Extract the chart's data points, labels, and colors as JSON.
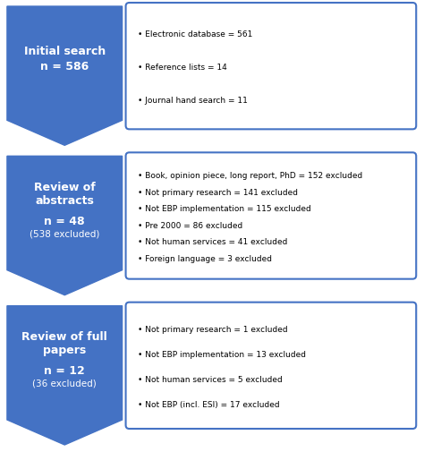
{
  "background_color": "#ffffff",
  "arrow_color": "#4472C4",
  "box_border_color": "#4472C4",
  "box_fill_color": "#ffffff",
  "left_box_fill_color": "#4472C4",
  "left_box_text_color": "#ffffff",
  "right_box_text_color": "#000000",
  "rows": [
    {
      "left_title": "Initial search",
      "left_n": "n = 586",
      "left_sub": "",
      "right_bullets": [
        "Electronic database = 561",
        "Reference lists = 14",
        "Journal hand search = 11"
      ]
    },
    {
      "left_title": "Review of\nabstracts",
      "left_n": "n = 48",
      "left_sub": "(538 excluded)",
      "right_bullets": [
        "Book, opinion piece, long report, PhD = 152 excluded",
        "Not primary research = 141 excluded",
        "Not EBP implementation = 115 excluded",
        "Pre 2000 = 86 excluded",
        "Not human services = 41 excluded",
        "Foreign language = 3 excluded"
      ]
    },
    {
      "left_title": "Review of full\npapers",
      "left_n": "n = 12",
      "left_sub": "(36 excluded)",
      "right_bullets": [
        "Not primary research = 1 excluded",
        "Not EBP implementation = 13 excluded",
        "Not human services = 5 excluded",
        "Not EBP (incl. ESI) = 17 excluded"
      ]
    }
  ],
  "fig_width": 4.74,
  "fig_height": 5.06,
  "dpi": 100
}
